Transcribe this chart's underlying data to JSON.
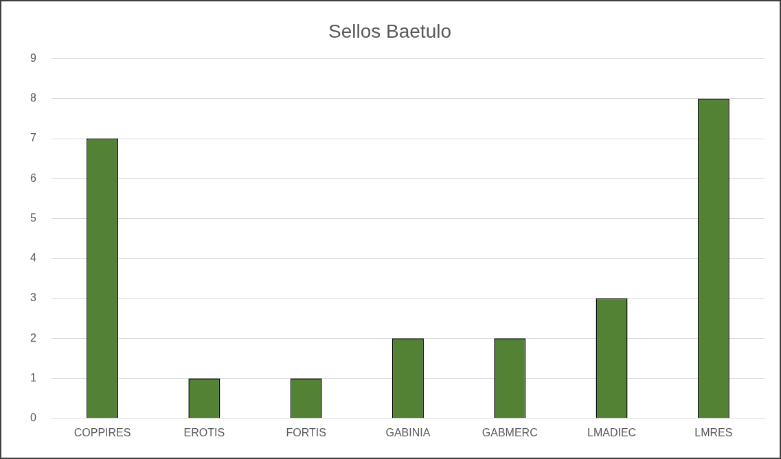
{
  "chart_data": {
    "type": "bar",
    "title": "Sellos Baetulo",
    "categories": [
      "COPPIRES",
      "EROTIS",
      "FORTIS",
      "GABINIA",
      "GABMERC",
      "LMADIEC",
      "LMRES"
    ],
    "values": [
      7,
      1,
      1,
      2,
      2,
      3,
      8
    ],
    "color": "#548235",
    "ylim": [
      0,
      9
    ],
    "yticks": [
      0,
      1,
      2,
      3,
      4,
      5,
      6,
      7,
      8,
      9
    ],
    "grid": "y"
  }
}
